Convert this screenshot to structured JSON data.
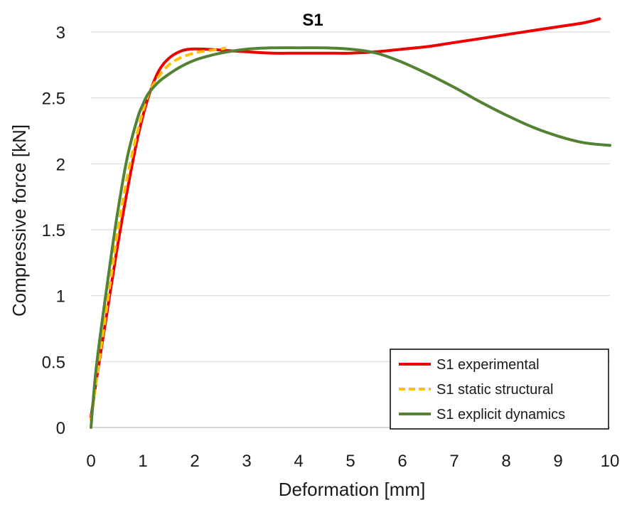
{
  "chart_data": {
    "type": "line",
    "title": "S1",
    "xlabel": "Deformation [mm]",
    "ylabel": "Compressive force [kN]",
    "xlim": [
      0,
      10
    ],
    "ylim": [
      0,
      3
    ],
    "x_ticks": [
      0,
      1,
      2,
      3,
      4,
      5,
      6,
      7,
      8,
      9,
      10
    ],
    "x_tick_labels": [
      "0",
      "1",
      "2",
      "3",
      "4",
      "5",
      "6",
      "7",
      "8",
      "9",
      "10"
    ],
    "y_ticks": [
      0,
      0.5,
      1,
      1.5,
      2,
      2.5,
      3
    ],
    "y_tick_labels": [
      "0",
      "0.5",
      "1",
      "1.5",
      "2",
      "2.5",
      "3"
    ],
    "grid": "horizontal",
    "legend_position": "bottom-right",
    "series": [
      {
        "name": "S1 experimental",
        "color": "#ee0000",
        "dash": "solid",
        "x": [
          0,
          0.1,
          0.3,
          0.5,
          0.7,
          0.9,
          1.1,
          1.3,
          1.5,
          1.7,
          1.9,
          2.2,
          2.6,
          3.0,
          3.5,
          4.0,
          4.5,
          5.0,
          5.5,
          6.0,
          6.5,
          7.0,
          7.5,
          8.0,
          8.5,
          9.0,
          9.5,
          9.8
        ],
        "y": [
          0.08,
          0.35,
          0.85,
          1.35,
          1.8,
          2.2,
          2.5,
          2.7,
          2.8,
          2.85,
          2.87,
          2.87,
          2.86,
          2.85,
          2.84,
          2.84,
          2.84,
          2.84,
          2.85,
          2.87,
          2.89,
          2.92,
          2.95,
          2.98,
          3.01,
          3.04,
          3.07,
          3.1
        ]
      },
      {
        "name": "S1 static structural",
        "color": "#ffc000",
        "dash": "dashed",
        "x": [
          0,
          0.1,
          0.3,
          0.5,
          0.7,
          0.9,
          1.1,
          1.3,
          1.5,
          1.7,
          1.9,
          2.1,
          2.3,
          2.5,
          2.6
        ],
        "y": [
          0.05,
          0.35,
          0.9,
          1.45,
          1.9,
          2.25,
          2.52,
          2.66,
          2.75,
          2.8,
          2.83,
          2.85,
          2.86,
          2.87,
          2.88
        ]
      },
      {
        "name": "S1 explicit dynamics",
        "color": "#548235",
        "dash": "solid",
        "x": [
          0,
          0.1,
          0.3,
          0.5,
          0.7,
          0.9,
          1.0,
          1.1,
          1.3,
          1.5,
          1.7,
          1.9,
          2.1,
          2.5,
          3.0,
          3.5,
          4.0,
          4.5,
          5.0,
          5.5,
          6.0,
          6.5,
          7.0,
          7.5,
          8.0,
          8.5,
          9.0,
          9.5,
          10.0
        ],
        "y": [
          0.0,
          0.45,
          1.05,
          1.6,
          2.05,
          2.35,
          2.45,
          2.53,
          2.62,
          2.68,
          2.73,
          2.77,
          2.8,
          2.84,
          2.87,
          2.88,
          2.88,
          2.88,
          2.87,
          2.84,
          2.77,
          2.68,
          2.58,
          2.47,
          2.37,
          2.28,
          2.21,
          2.16,
          2.14
        ]
      }
    ]
  }
}
